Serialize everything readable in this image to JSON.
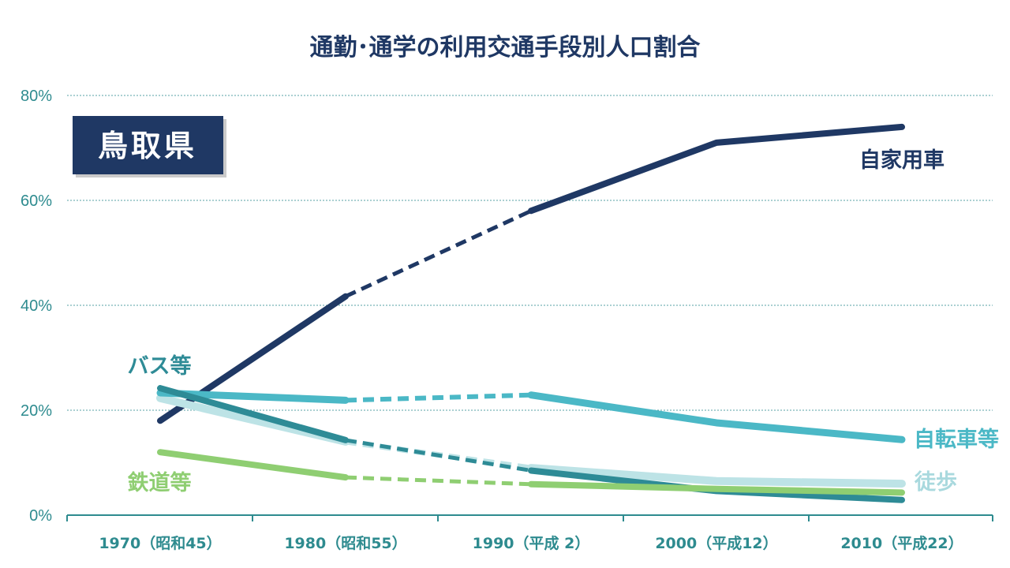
{
  "chart_data": {
    "type": "line",
    "title": "通勤･通学の利用交通手段別人口割合",
    "badge": "鳥取県",
    "categories": [
      "1970（昭和45）",
      "1980（昭和55）",
      "1990（平成 2）",
      "2000（平成12）",
      "2010（平成22）"
    ],
    "yticks": [
      "0%",
      "20%",
      "40%",
      "60%",
      "80%"
    ],
    "ylim": [
      0,
      80
    ],
    "grid": true,
    "note": "1980→1990 segment drawn as dashed line",
    "series": [
      {
        "name": "自家用車",
        "values": [
          18.0,
          41.7,
          58.0,
          71.0,
          74.0
        ],
        "color": "#1f3864",
        "width": 8
      },
      {
        "name": "徒歩",
        "values": [
          22.3,
          14.0,
          9.0,
          6.5,
          6.0
        ],
        "color": "#bde3e6",
        "width": 10
      },
      {
        "name": "自転車等",
        "values": [
          23.3,
          21.9,
          22.9,
          17.6,
          14.4
        ],
        "color": "#4bb8c6",
        "width": 9
      },
      {
        "name": "バス等",
        "values": [
          24.2,
          14.3,
          8.5,
          4.6,
          2.9
        ],
        "color": "#2e8b96",
        "width": 8
      },
      {
        "name": "鉄道等",
        "values": [
          12.0,
          7.2,
          5.9,
          5.0,
          4.3
        ],
        "color": "#8fce72",
        "width": 8
      }
    ]
  }
}
